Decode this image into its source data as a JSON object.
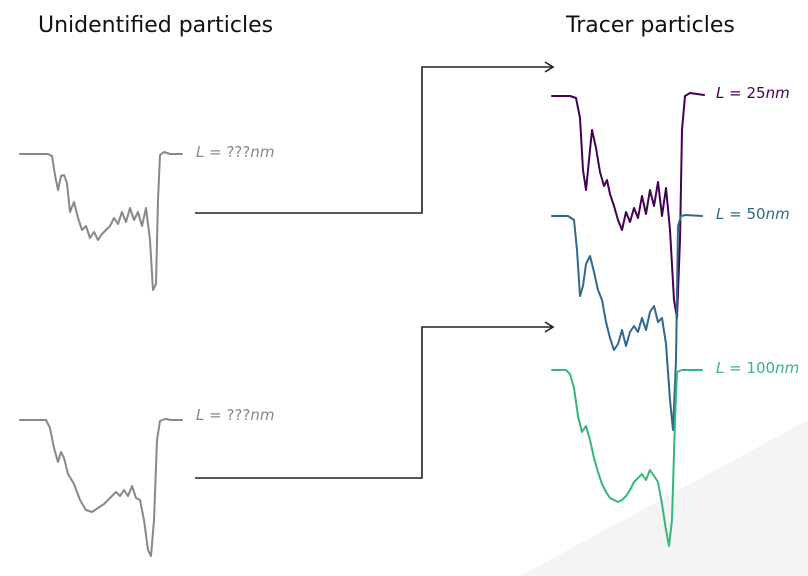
{
  "headings": {
    "left": "Unidentified particles",
    "right": "Tracer particles"
  },
  "unknown_traces": [
    {
      "label_prefix": "L",
      "label_eq": " = ",
      "label_value": "???",
      "label_unit": "nm",
      "color": "#888888"
    },
    {
      "label_prefix": "L",
      "label_eq": " = ",
      "label_value": "???",
      "label_unit": "nm",
      "color": "#888888"
    }
  ],
  "tracer_traces": [
    {
      "label_prefix": "L",
      "label_eq": " = ",
      "label_value": "25",
      "label_unit": "nm",
      "color": "#440154"
    },
    {
      "label_prefix": "L",
      "label_eq": " = ",
      "label_value": "50",
      "label_unit": "nm",
      "color": "#31688e"
    },
    {
      "label_prefix": "L",
      "label_eq": " = ",
      "label_value": "100",
      "label_unit": "nm",
      "color": "#35b779"
    }
  ],
  "arrow_color": "#222222"
}
